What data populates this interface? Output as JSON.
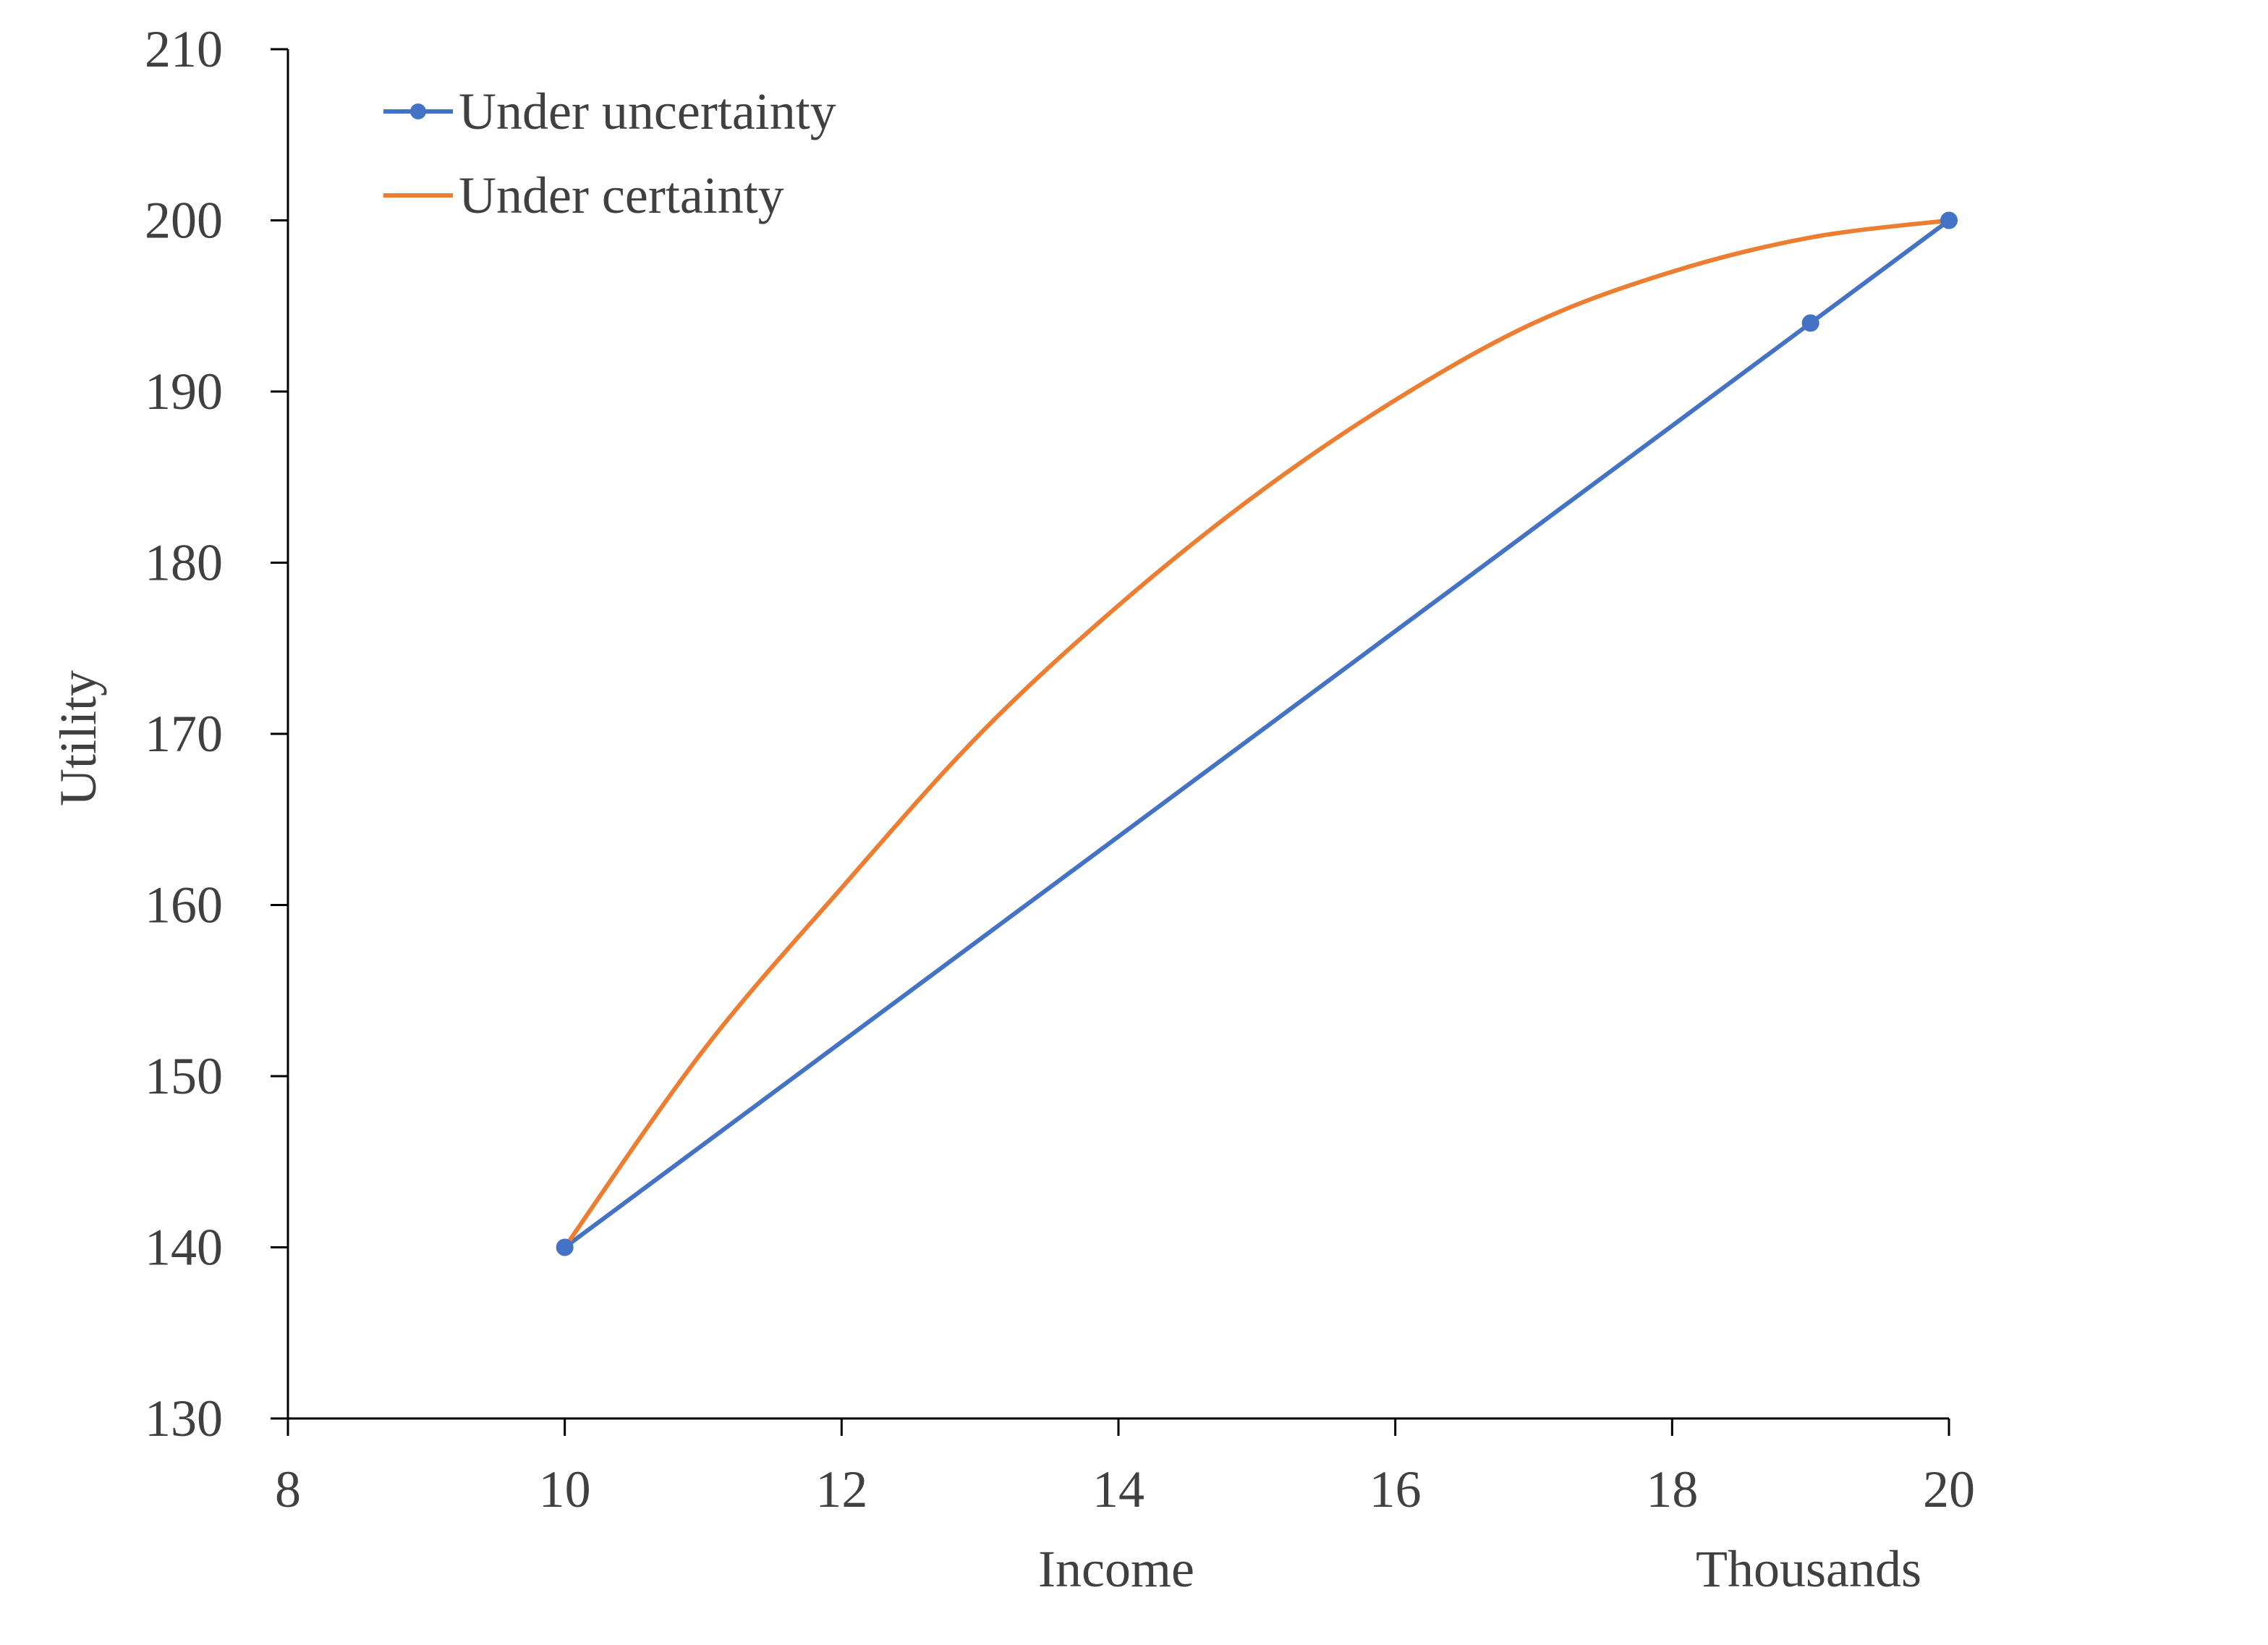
{
  "chart_data": {
    "type": "line",
    "title": "",
    "xlabel": "Income",
    "x_unit_label": "Thousands",
    "ylabel": "Utility",
    "xlim": [
      8,
      20
    ],
    "ylim": [
      130,
      210
    ],
    "xticks": [
      8,
      10,
      12,
      14,
      16,
      18,
      20
    ],
    "yticks": [
      130,
      140,
      150,
      160,
      170,
      180,
      190,
      200,
      210
    ],
    "grid": false,
    "legend_position": "top-left",
    "series": [
      {
        "name": "Under uncertainty",
        "color": "#4472C4",
        "markers": true,
        "x": [
          10,
          19,
          20
        ],
        "y": [
          140,
          194,
          200
        ]
      },
      {
        "name": "Under certainty",
        "color": "#ED7D31",
        "markers": false,
        "x": [
          10,
          11,
          12,
          13,
          14,
          15,
          16,
          17,
          18,
          19,
          20
        ],
        "y": [
          140,
          151.5,
          161,
          170,
          177.5,
          184,
          189.5,
          194,
          197,
          199,
          200
        ]
      }
    ]
  }
}
